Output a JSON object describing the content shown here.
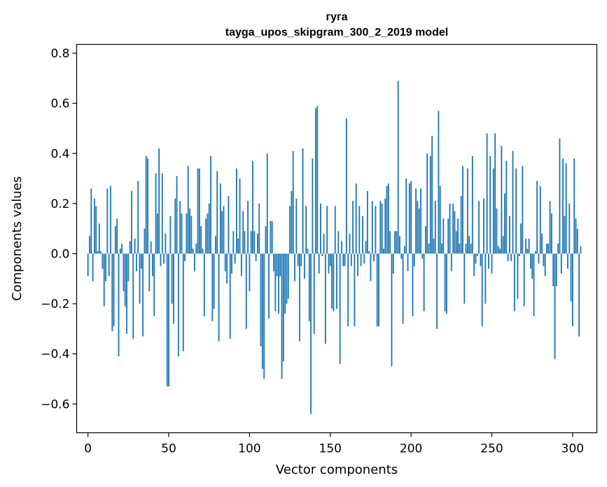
{
  "chart_data": {
    "type": "bar",
    "title": "гуга",
    "subtitle": "tayga_upos_skipgram_300_2_2019 model",
    "xlabel": "Vector components",
    "ylabel": "Components values",
    "xlim": [
      -7,
      315
    ],
    "ylim": [
      -0.715,
      0.835
    ],
    "xticks": [
      0,
      50,
      100,
      150,
      200,
      250,
      300
    ],
    "yticks": [
      -0.6,
      -0.4,
      -0.2,
      0.0,
      0.2,
      0.4,
      0.6,
      0.8
    ],
    "xtick_labels": [
      "0",
      "50",
      "100",
      "150",
      "200",
      "250",
      "300"
    ],
    "ytick_labels": [
      "−0.6",
      "−0.4",
      "−0.2",
      "0.0",
      "0.2",
      "0.4",
      "0.6",
      "0.8"
    ],
    "bar_color": "#1f77b4",
    "grid": false,
    "legend": "none",
    "values": [
      -0.09,
      0.07,
      0.26,
      -0.11,
      0.22,
      0.19,
      0.01,
      0.12,
      0.01,
      -0.06,
      -0.21,
      -0.11,
      0.26,
      -0.09,
      0.27,
      -0.31,
      -0.29,
      0.11,
      0.14,
      -0.41,
      0.02,
      0.04,
      -0.15,
      -0.21,
      -0.32,
      -0.11,
      0.05,
      0.25,
      -0.34,
      0.06,
      -0.07,
      0.29,
      -0.2,
      -0.06,
      -0.33,
      0.1,
      0.39,
      0.38,
      -0.15,
      0.05,
      -0.09,
      -0.25,
      0.32,
      0.16,
      0.42,
      -0.05,
      0.32,
      -0.04,
      0.08,
      -0.53,
      -0.53,
      0.15,
      -0.2,
      -0.28,
      0.22,
      0.31,
      -0.41,
      0.21,
      0.16,
      -0.39,
      -0.03,
      0.16,
      0.35,
      0.18,
      0.15,
      0.02,
      -0.07,
      0.04,
      0.34,
      0.34,
      0.11,
      0.02,
      -0.25,
      0.14,
      0.16,
      0.2,
      0.39,
      -0.27,
      -0.22,
      0.07,
      0.33,
      -0.35,
      0.28,
      0.17,
      0.19,
      -0.07,
      -0.12,
      0.23,
      -0.34,
      -0.08,
      0.09,
      -0.04,
      0.34,
      0.06,
      0.3,
      -0.09,
      0.17,
      0.09,
      -0.3,
      0.21,
      -0.15,
      0.09,
      0.37,
      0.09,
      -0.03,
      0.08,
      0.2,
      -0.37,
      -0.46,
      -0.5,
      0.11,
      0.4,
      -0.26,
      0.13,
      0.13,
      -0.07,
      -0.23,
      -0.09,
      -0.24,
      -0.09,
      -0.5,
      -0.43,
      -0.24,
      -0.2,
      -0.18,
      0.19,
      0.25,
      0.41,
      -0.11,
      0.22,
      -0.05,
      -0.35,
      -0.05,
      0.42,
      -0.1,
      0.19,
      0.02,
      -0.27,
      -0.64,
      0.38,
      -0.32,
      0.58,
      0.59,
      -0.08,
      0.2,
      -0.01,
      0.08,
      -0.36,
      0.19,
      -0.08,
      -0.05,
      -0.22,
      -0.23,
      0.19,
      -0.22,
      0.09,
      -0.44,
      0.05,
      -0.05,
      -0.05,
      0.54,
      -0.29,
      0.08,
      -0.05,
      0.21,
      -0.29,
      0.28,
      -0.09,
      0.19,
      -0.05,
      0.15,
      -0.04,
      0.05,
      0.25,
      0.01,
      -0.11,
      0.21,
      -0.03,
      0.19,
      -0.29,
      -0.29,
      0.21,
      0.2,
      0.02,
      0.22,
      0.27,
      0.28,
      0.09,
      -0.45,
      -0.08,
      0.09,
      0.09,
      0.69,
      0.07,
      -0.02,
      -0.28,
      0.03,
      0.3,
      -0.07,
      0.28,
      0.29,
      -0.25,
      -0.05,
      0.26,
      0.21,
      0.18,
      0.26,
      -0.02,
      -0.23,
      0.11,
      0.4,
      0.04,
      0.39,
      0.47,
      0.06,
      0.21,
      -0.3,
      0.57,
      0.27,
      0.04,
      0.14,
      -0.23,
      -0.24,
      0.14,
      0.2,
      -0.07,
      0.2,
      0.17,
      0.09,
      0.14,
      0.04,
      0.23,
      0.35,
      -0.2,
      0.04,
      0.34,
      0.07,
      0.04,
      0.39,
      -0.09,
      -0.04,
      -0.01,
      0.21,
      -0.05,
      -0.29,
      0.22,
      -0.2,
      0.48,
      -0.06,
      0.39,
      -0.08,
      0.34,
      0.48,
      0.18,
      0.03,
      0.02,
      0.43,
      0.07,
      0.24,
      0.37,
      -0.03,
      0.15,
      -0.03,
      0.41,
      -0.23,
      0.34,
      -0.18,
      -0.01,
      0.12,
      0.35,
      -0.21,
      0.06,
      0.02,
      0.06,
      -0.06,
      -0.1,
      -0.25,
      0.01,
      0.29,
      -0.04,
      0.27,
      0.08,
      -0.05,
      -0.09,
      0.04,
      0.04,
      0.21,
      0.16,
      -0.13,
      -0.42,
      -0.13,
      0.04,
      0.46,
      -0.08,
      0.38,
      0.15,
      0.36,
      -0.06,
      0.2,
      -0.19,
      -0.29,
      0.38,
      0.14,
      0.1,
      -0.33,
      0.03
    ]
  }
}
